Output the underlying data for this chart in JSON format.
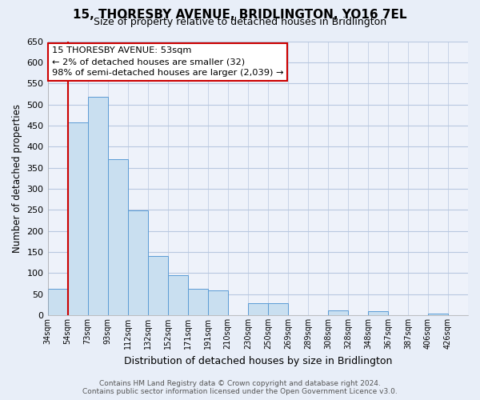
{
  "title": "15, THORESBY AVENUE, BRIDLINGTON, YO16 7EL",
  "subtitle": "Size of property relative to detached houses in Bridlington",
  "xlabel": "Distribution of detached houses by size in Bridlington",
  "ylabel": "Number of detached properties",
  "bin_labels": [
    "34sqm",
    "54sqm",
    "73sqm",
    "93sqm",
    "112sqm",
    "132sqm",
    "152sqm",
    "171sqm",
    "191sqm",
    "210sqm",
    "230sqm",
    "250sqm",
    "269sqm",
    "289sqm",
    "308sqm",
    "328sqm",
    "348sqm",
    "367sqm",
    "387sqm",
    "406sqm",
    "426sqm"
  ],
  "bar_heights": [
    62,
    457,
    519,
    370,
    249,
    141,
    95,
    62,
    58,
    0,
    28,
    28,
    0,
    0,
    12,
    0,
    10,
    0,
    0,
    3,
    0
  ],
  "bar_color": "#c9dff0",
  "bar_edge_color": "#5b9bd5",
  "ylim": [
    0,
    650
  ],
  "yticks": [
    0,
    50,
    100,
    150,
    200,
    250,
    300,
    350,
    400,
    450,
    500,
    550,
    600,
    650
  ],
  "property_line_color": "#cc0000",
  "annotation_line1": "15 THORESBY AVENUE: 53sqm",
  "annotation_line2": "← 2% of detached houses are smaller (32)",
  "annotation_line3": "98% of semi-detached houses are larger (2,039) →",
  "footer_line1": "Contains HM Land Registry data © Crown copyright and database right 2024.",
  "footer_line2": "Contains public sector information licensed under the Open Government Licence v3.0.",
  "bg_color": "#e8eef8",
  "plot_bg_color": "#eef2fa",
  "grid_color": "#b8c8e0"
}
